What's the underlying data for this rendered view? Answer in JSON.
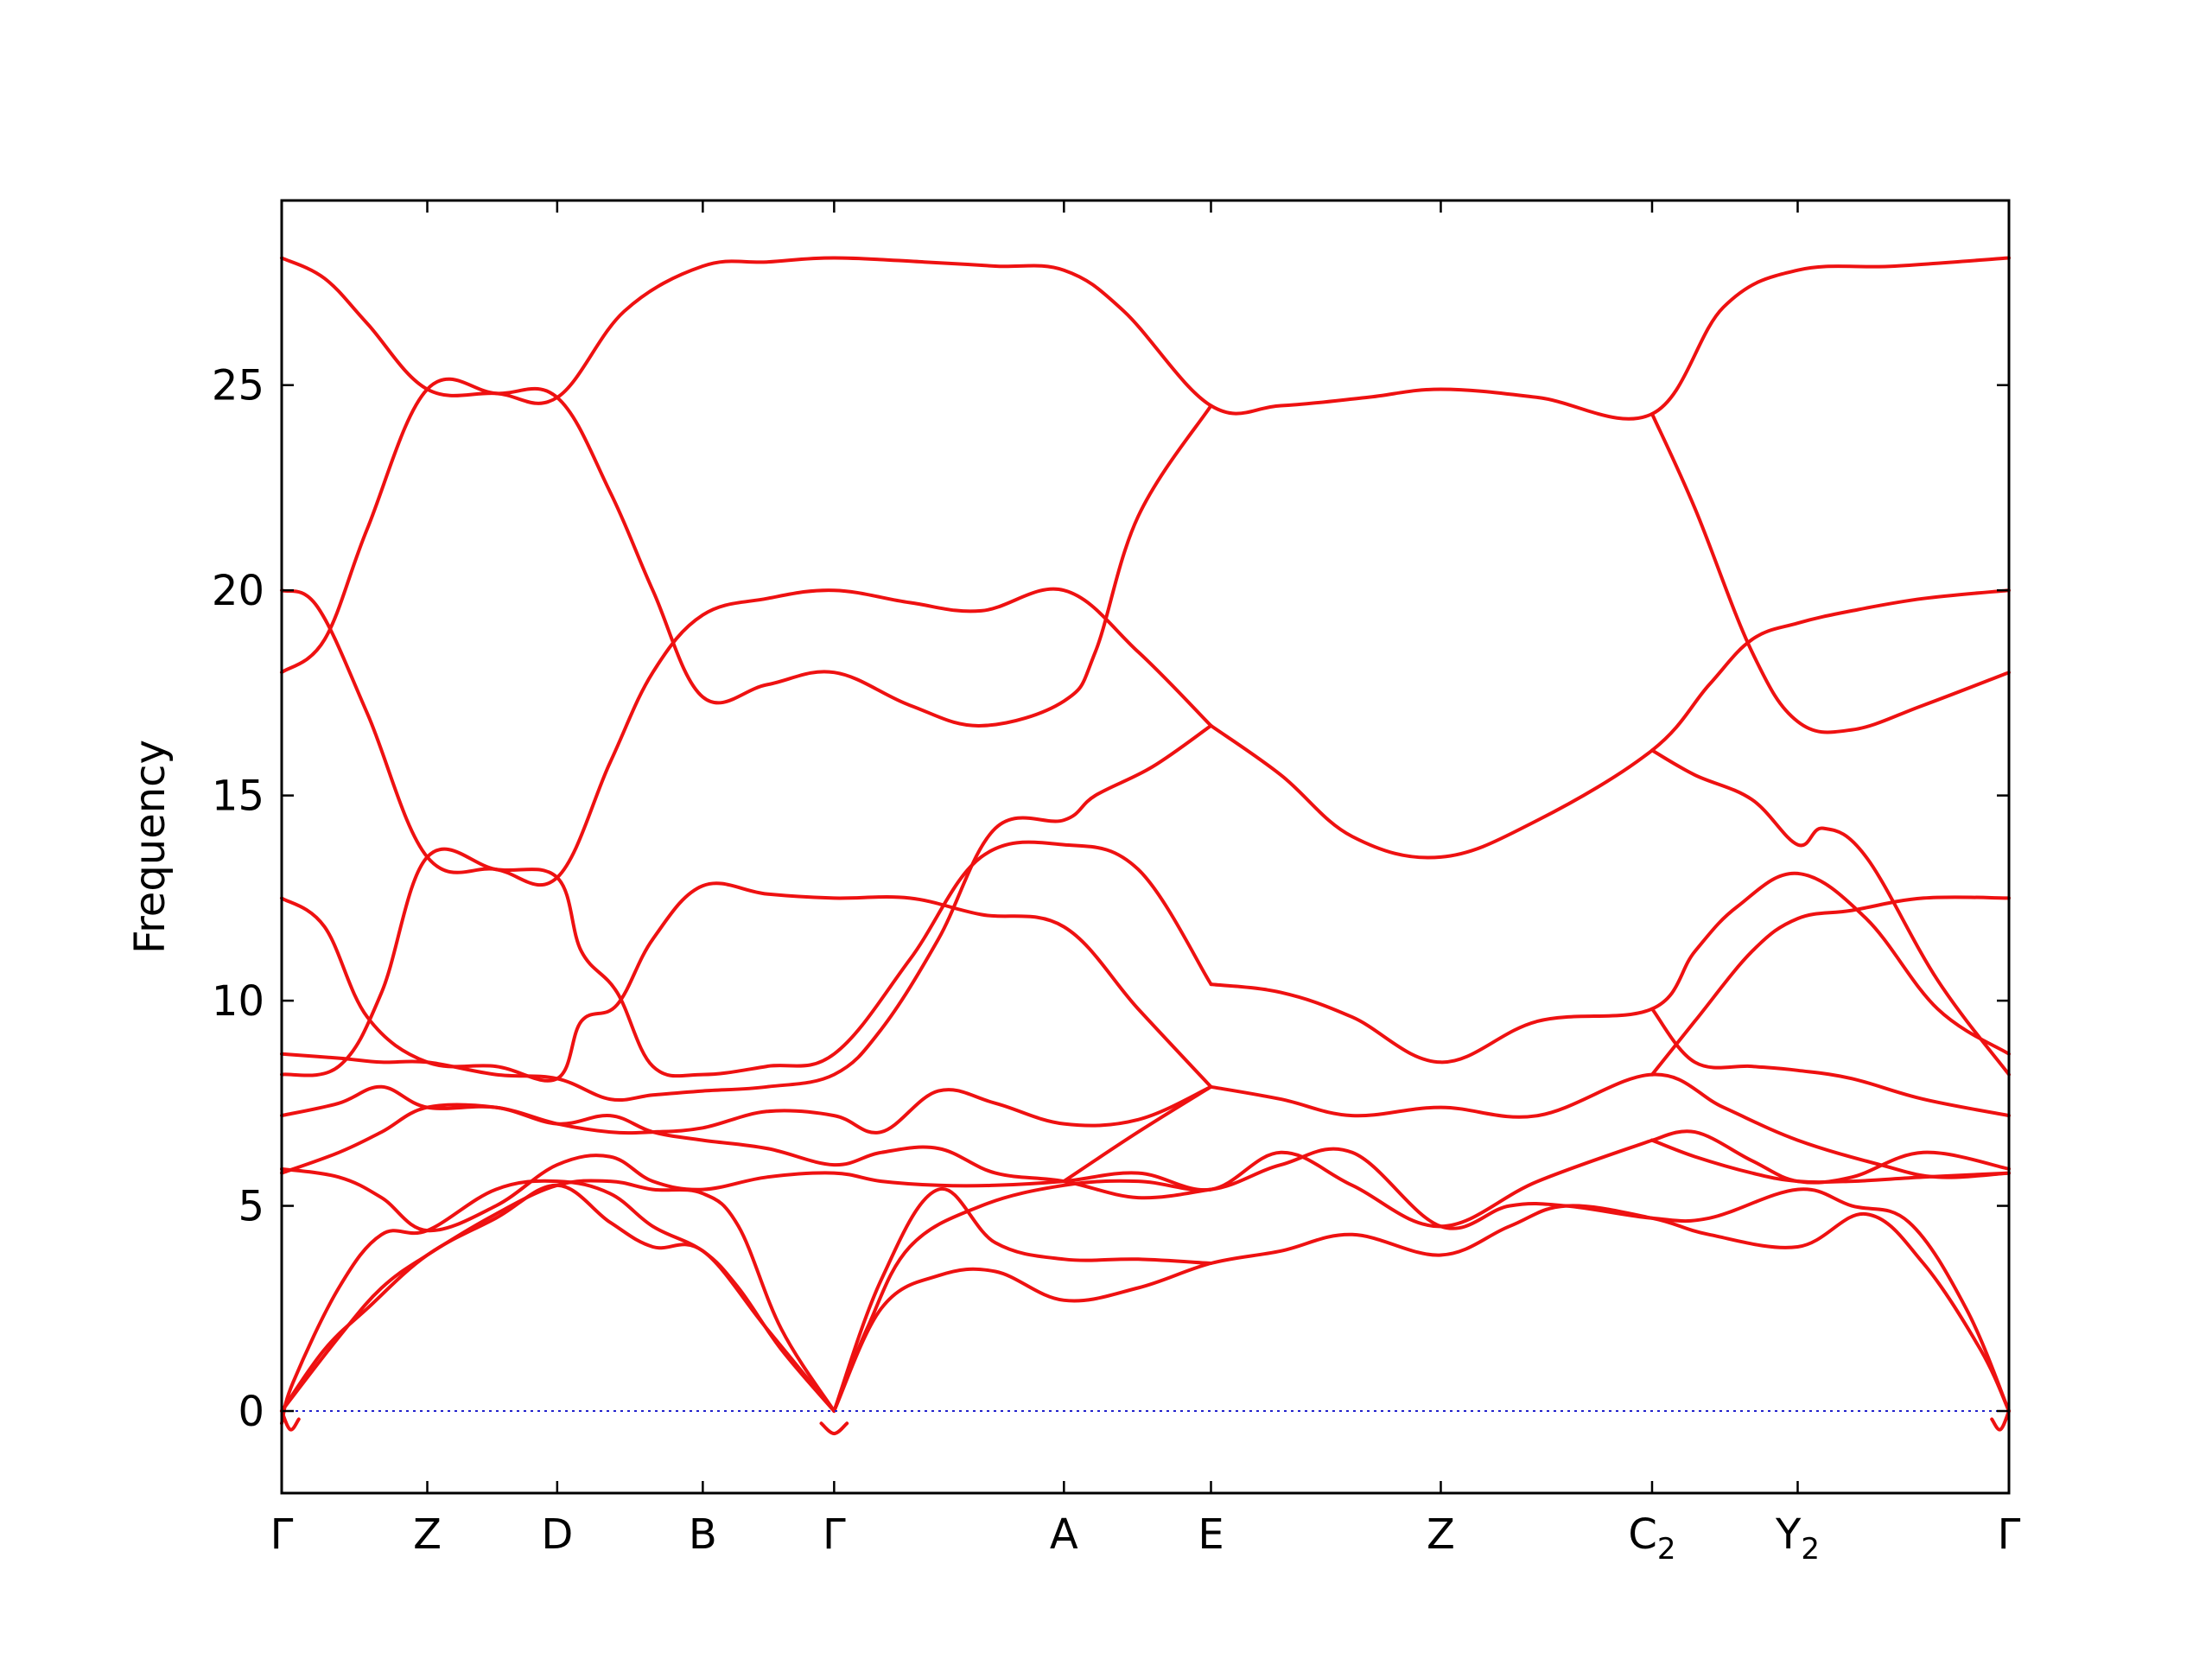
{
  "chart_data": {
    "type": "line",
    "title": "",
    "xlabel": "",
    "ylabel": "Frequency",
    "ylim": [
      -2,
      29.5
    ],
    "yticks": [
      0,
      5,
      10,
      15,
      20,
      25
    ],
    "xlim": [
      0,
      12.1
    ],
    "xticks": [
      {
        "label": "Γ",
        "sub": "",
        "x": 0.0
      },
      {
        "label": "Z",
        "sub": "",
        "x": 1.02
      },
      {
        "label": "D",
        "sub": "",
        "x": 1.93
      },
      {
        "label": "B",
        "sub": "",
        "x": 2.95
      },
      {
        "label": "Γ",
        "sub": "",
        "x": 3.87
      },
      {
        "label": "A",
        "sub": "",
        "x": 5.48
      },
      {
        "label": "E",
        "sub": "",
        "x": 6.51
      },
      {
        "label": "Z",
        "sub": "",
        "x": 8.12
      },
      {
        "label": "C",
        "sub": "2",
        "x": 9.6
      },
      {
        "label": "Y",
        "sub": "2",
        "x": 10.62
      },
      {
        "label": "Γ",
        "sub": "",
        "x": 12.1
      }
    ],
    "grid": false,
    "legend": "none",
    "colors": {
      "bands": "#ee1111",
      "zero_line": "#2222cc"
    },
    "zero_line": 0,
    "series": [
      {
        "x": [
          0,
          0.3,
          0.6,
          1.02,
          1.5,
          1.93,
          2.4,
          2.95,
          3.4,
          3.87,
          4.5,
          5.0,
          5.48,
          5.9,
          6.51,
          7.0,
          7.6,
          8.12,
          8.8,
          9.6,
          10.1,
          10.62,
          11.3,
          12.1
        ],
        "y": [
          28.1,
          27.6,
          26.5,
          24.9,
          24.8,
          24.7,
          26.8,
          27.9,
          28.0,
          28.1,
          28.0,
          27.9,
          27.8,
          26.8,
          24.5,
          24.5,
          24.7,
          24.9,
          24.7,
          24.3,
          26.9,
          27.8,
          27.9,
          28.1
        ]
      },
      {
        "x": [
          0,
          0.3,
          0.6,
          1.02,
          1.5,
          1.93,
          2.3,
          2.6,
          2.95,
          3.4,
          3.87,
          4.4,
          4.9,
          5.48,
          5.7,
          6.0,
          6.51
        ],
        "y": [
          18.0,
          18.8,
          21.5,
          24.9,
          24.8,
          24.7,
          22.4,
          20.0,
          17.4,
          17.7,
          18.0,
          17.2,
          16.7,
          17.3,
          18.5,
          21.8,
          24.5
        ]
      },
      {
        "x": [
          0,
          0.25,
          0.6,
          1.02,
          1.5,
          1.93,
          2.3,
          2.6,
          2.95,
          3.4,
          3.87,
          4.4,
          4.9,
          5.48,
          6.0,
          6.51
        ],
        "y": [
          20.0,
          19.6,
          17.0,
          13.5,
          13.2,
          13.0,
          15.8,
          18.0,
          19.4,
          19.8,
          20.0,
          19.7,
          19.5,
          20.0,
          18.5,
          16.7
        ],
        "comment": ""
      },
      {
        "x": [
          6.51,
          7.0,
          7.5,
          8.12,
          8.8,
          9.6,
          10.0,
          10.3,
          10.62,
          11.0,
          11.5,
          12.1
        ],
        "y": [
          16.7,
          15.5,
          14.0,
          13.5,
          14.4,
          16.1,
          17.7,
          18.8,
          19.2,
          19.5,
          19.8,
          20.0
        ]
      },
      {
        "x": [
          9.6,
          9.9,
          10.3,
          10.62,
          11.0,
          11.5,
          12.1
        ],
        "y": [
          24.3,
          22.0,
          18.5,
          16.8,
          16.6,
          17.2,
          18.0
        ]
      },
      {
        "x": [
          0,
          0.3,
          0.6,
          1.02,
          1.5,
          1.93,
          2.1,
          2.35,
          2.6,
          2.95,
          3.4,
          3.87,
          4.4,
          4.9,
          5.48,
          6.0,
          6.51
        ],
        "y": [
          12.5,
          11.8,
          9.6,
          8.5,
          8.4,
          8.1,
          9.5,
          9.9,
          11.5,
          12.8,
          12.6,
          12.5,
          12.5,
          12.1,
          11.8,
          9.8,
          7.9
        ]
      },
      {
        "x": [
          6.51,
          7.0,
          7.5,
          8.12,
          8.8,
          9.6,
          9.9,
          10.2,
          10.62,
          11.1,
          11.6,
          12.1
        ],
        "y": [
          10.4,
          10.2,
          9.6,
          8.5,
          9.5,
          9.8,
          11.2,
          12.3,
          13.1,
          12.0,
          9.8,
          8.7
        ]
      },
      {
        "x": [
          0,
          0.4,
          0.7,
          1.02,
          1.5,
          1.93,
          2.1,
          2.35,
          2.6,
          2.95,
          3.4,
          3.87,
          4.4,
          4.9,
          5.48,
          6.0,
          6.51
        ],
        "y": [
          8.2,
          8.4,
          10.2,
          13.5,
          13.2,
          13.0,
          11.2,
          10.2,
          8.4,
          8.2,
          8.4,
          8.7,
          11.0,
          13.5,
          13.8,
          13.2,
          10.4
        ]
      },
      {
        "x": [
          0,
          0.4,
          0.7,
          1.02,
          1.5,
          1.93,
          2.3,
          2.6,
          2.95,
          3.4,
          3.87,
          4.2,
          4.6,
          5.0,
          5.48,
          5.7,
          6.1,
          6.51
        ],
        "y": [
          8.7,
          8.6,
          8.5,
          8.5,
          8.2,
          8.1,
          7.6,
          7.7,
          7.8,
          7.9,
          8.2,
          9.3,
          11.5,
          14.2,
          14.4,
          15.0,
          15.7,
          16.7
        ]
      },
      {
        "x": [
          9.6,
          9.9,
          10.3,
          10.62,
          10.8,
          11.1,
          11.6,
          12.1
        ],
        "y": [
          16.1,
          15.5,
          14.9,
          13.8,
          14.2,
          13.5,
          10.5,
          8.2
        ]
      },
      {
        "x": [
          9.6,
          9.9,
          10.3,
          10.62,
          11.0,
          11.5,
          12.1
        ],
        "y": [
          9.8,
          8.5,
          8.4,
          8.3,
          8.1,
          7.6,
          7.2
        ]
      },
      {
        "x": [
          9.6,
          9.9,
          10.3,
          10.62,
          11.0,
          11.5,
          12.1
        ],
        "y": [
          8.2,
          9.5,
          11.2,
          12.0,
          12.2,
          12.5,
          12.5
        ]
      },
      {
        "x": [
          6.51,
          7.0,
          7.5,
          8.12,
          8.8,
          9.6,
          10.1,
          10.62,
          11.2,
          11.6,
          12.1
        ],
        "y": [
          7.9,
          7.6,
          7.2,
          7.4,
          7.2,
          8.2,
          7.4,
          6.6,
          6.0,
          5.7,
          5.8
        ]
      },
      {
        "x": [
          0,
          0.4,
          0.7,
          1.02,
          1.5,
          1.93,
          2.3,
          2.6,
          2.95,
          3.4,
          3.87,
          4.2,
          4.6,
          5.0,
          5.48,
          6.0,
          6.51
        ],
        "y": [
          7.2,
          7.5,
          7.9,
          7.4,
          7.4,
          7.0,
          6.8,
          6.8,
          6.9,
          7.3,
          7.2,
          6.8,
          7.8,
          7.5,
          7.0,
          7.1,
          7.9
        ]
      },
      {
        "x": [
          0,
          0.4,
          0.7,
          1.02,
          1.5,
          1.93,
          2.3,
          2.6,
          2.95,
          3.4,
          3.87,
          4.2,
          4.6,
          5.0,
          5.48,
          6.0,
          6.51
        ],
        "y": [
          5.8,
          6.3,
          6.8,
          7.4,
          7.4,
          7.0,
          7.2,
          6.8,
          6.6,
          6.4,
          6.0,
          6.3,
          6.4,
          5.8,
          5.6,
          5.2,
          5.4
        ]
      },
      {
        "x": [
          9.6,
          9.9,
          10.3,
          10.62,
          11.0,
          11.5,
          12.1
        ],
        "y": [
          6.6,
          6.8,
          6.1,
          5.6,
          5.7,
          6.3,
          5.9
        ]
      },
      {
        "x": [
          9.6,
          9.9,
          10.3,
          10.62,
          11.0,
          11.5,
          12.1
        ],
        "y": [
          6.6,
          6.2,
          5.8,
          5.6,
          5.6,
          5.7,
          5.8
        ]
      },
      {
        "x": [
          0,
          0.4,
          0.7,
          1.02,
          1.5,
          1.93,
          2.3,
          2.6,
          2.95,
          3.4,
          3.87,
          4.2,
          4.6,
          5.0,
          5.48,
          6.0,
          6.51,
          7.0,
          7.5,
          8.12,
          8.8,
          9.6
        ],
        "y": [
          5.9,
          5.7,
          5.2,
          4.4,
          5.0,
          6.0,
          6.2,
          5.6,
          5.4,
          5.7,
          5.8,
          5.6,
          5.5,
          5.5,
          5.6,
          5.8,
          5.4,
          6.3,
          5.5,
          4.5,
          5.6,
          6.6
        ]
      },
      {
        "x": [
          0,
          0.08,
          0.4,
          0.7,
          1.02,
          1.5,
          1.93,
          2.3,
          2.6,
          2.95,
          3.2,
          3.5,
          3.87
        ],
        "y": [
          -0.3,
          0.7,
          3.0,
          4.3,
          4.4,
          5.4,
          5.6,
          5.3,
          4.5,
          3.9,
          3.0,
          1.5,
          0.0
        ]
      },
      {
        "x": [
          0,
          0.4,
          0.7,
          1.02,
          1.5,
          1.93,
          2.3,
          2.6,
          2.95,
          3.2,
          3.5,
          3.87
        ],
        "y": [
          0.0,
          1.8,
          3.0,
          3.8,
          4.8,
          5.5,
          5.6,
          5.4,
          5.3,
          4.5,
          2.0,
          0.0
        ]
      },
      {
        "x": [
          0,
          0.3,
          0.6,
          1.02,
          1.5,
          1.93,
          2.3,
          2.6,
          2.95,
          3.4,
          3.87
        ],
        "y": [
          0.0,
          1.5,
          2.5,
          3.8,
          4.7,
          5.5,
          4.6,
          4.0,
          3.9,
          2.0,
          0.0
        ]
      },
      {
        "x": [
          3.87,
          4.1,
          4.4,
          4.9,
          5.48,
          6.0,
          6.51,
          7.0,
          7.5,
          8.12,
          8.6,
          9.0,
          9.6,
          10.0,
          10.62,
          11.0,
          11.4,
          11.8,
          12.1
        ],
        "y": [
          0.0,
          2.0,
          4.0,
          5.0,
          5.5,
          5.6,
          5.4,
          6.0,
          6.3,
          4.5,
          5.0,
          5.0,
          4.7,
          4.7,
          5.4,
          5.0,
          4.6,
          2.5,
          0.0
        ]
      },
      {
        "x": [
          3.87,
          4.2,
          4.6,
          5.0,
          5.48,
          6.0,
          6.51,
          7.0,
          7.5,
          8.12,
          8.6,
          9.0,
          9.6,
          10.0,
          10.62,
          11.1,
          11.5,
          11.9,
          12.1
        ],
        "y": [
          0.0,
          2.5,
          3.3,
          3.4,
          2.7,
          3.0,
          3.6,
          3.9,
          4.3,
          3.8,
          4.5,
          5.0,
          4.7,
          4.3,
          4.0,
          4.8,
          3.6,
          1.5,
          0.0
        ]
      },
      {
        "x": [
          3.87,
          4.2,
          4.6,
          5.0,
          5.48,
          6.0,
          6.51
        ],
        "y": [
          0.0,
          3.2,
          5.4,
          4.1,
          3.7,
          3.7,
          3.6
        ]
      },
      {
        "x": [
          5.48,
          6.0,
          6.51
        ],
        "y": [
          5.6,
          6.8,
          7.9
        ]
      },
      {
        "x": [
          0,
          0.06,
          0.12
        ],
        "y": [
          0.0,
          -0.45,
          -0.2
        ]
      },
      {
        "x": [
          3.78,
          3.87,
          3.96
        ],
        "y": [
          -0.3,
          -0.55,
          -0.3
        ]
      },
      {
        "x": [
          11.98,
          12.04,
          12.1
        ],
        "y": [
          -0.2,
          -0.45,
          0.0
        ]
      }
    ]
  }
}
